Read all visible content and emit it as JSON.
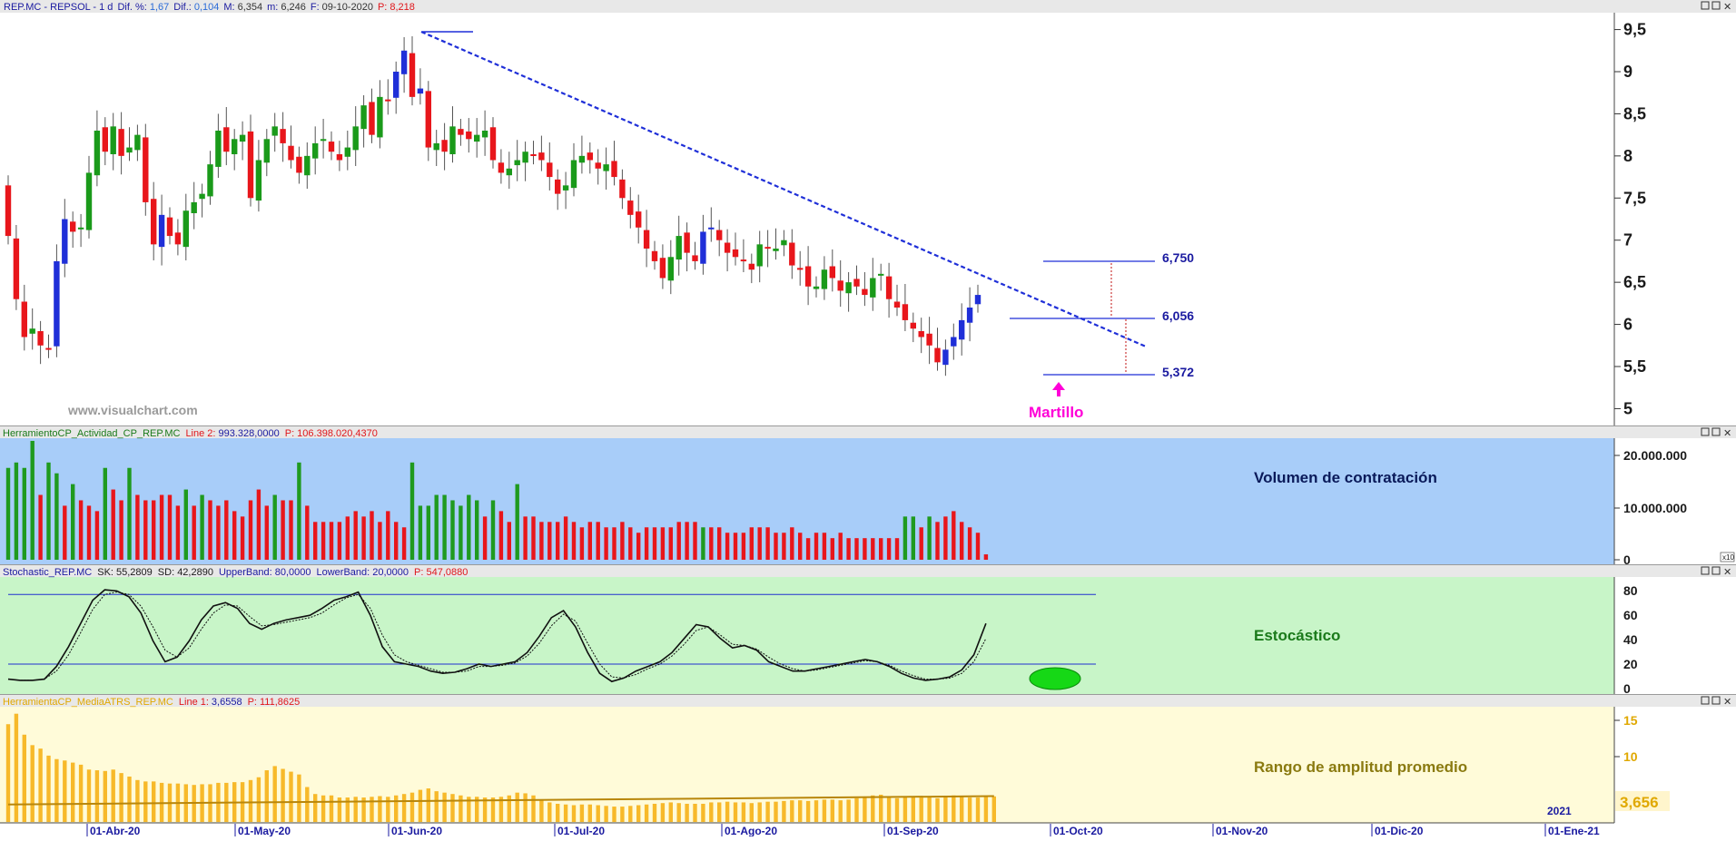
{
  "header": {
    "symbol": "REP.MC - REPSOL - 1 d",
    "dif_pct_label": "Dif. %:",
    "dif_pct_value": "1,67",
    "dif_label": "Dif.:",
    "dif_value": "0,104",
    "max_label": "M:",
    "max_value": "6,354",
    "min_label": "m:",
    "min_value": "6,246",
    "date_label": "F:",
    "date_value": "09-10-2020",
    "price_label": "P:",
    "price_value": "8,218"
  },
  "watermark": "www.visualchart.com",
  "annotations": {
    "level_high": "6,750",
    "level_mid": "6,056",
    "level_low": "5,372",
    "hammer_label": "Martillo"
  },
  "panels": {
    "volume": {
      "header_name": "HerramientoCP_Actividad_CP_REP.MC",
      "header_line_label": "Line 2:",
      "header_line_value": "993.328,0000",
      "header_p_label": "P:",
      "header_p_value": "106.398.020,4370",
      "title": "Volumen de contratación",
      "axis_ticks": [
        "20.000.000",
        "10.000.000",
        "0"
      ],
      "axis_scale_marker": "x10"
    },
    "stochastic": {
      "header_name": "Stochastic_REP.MC",
      "header_sk": "SK: 55,2809",
      "header_sd": "SD: 42,2890",
      "header_upper": "UpperBand: 80,0000",
      "header_lower": "LowerBand: 20,0000",
      "header_p": "P: 547,0880",
      "title": "Estocástico",
      "axis_ticks": [
        "80",
        "60",
        "40",
        "20",
        "0"
      ]
    },
    "atr": {
      "header_name": "HerramientaCP_MediaATRS_REP.MC",
      "header_line_label": "Line 1:",
      "header_line_value": "3,6558",
      "header_p_label": "P:",
      "header_p_value": "111,8625",
      "title": "Rango de amplitud promedio",
      "axis_ticks": [
        "15",
        "10"
      ],
      "last_value": "3,656"
    }
  },
  "x_axis": {
    "labels": [
      "01-Abr-20",
      "01-May-20",
      "01-Jun-20",
      "01-Jul-20",
      "01-Ago-20",
      "01-Sep-20",
      "01-Oct-20",
      "01-Nov-20",
      "01-Dic-20",
      "01-Ene-21"
    ],
    "year_marker": "2021"
  },
  "chart_data": [
    {
      "type": "candlestick",
      "symbol": "REP.MC",
      "ylim": [
        4.8,
        9.7
      ],
      "y_ticks": [
        "9,5",
        "9",
        "8,5",
        "8",
        "7,5",
        "7",
        "6,5",
        "6",
        "5,5",
        "5"
      ],
      "up_color": "#1a9a1a",
      "down_color": "#e8161b",
      "special_color": "#1f2fd8",
      "closes": [
        7.05,
        6.3,
        5.85,
        5.95,
        5.75,
        5.7,
        6.75,
        7.25,
        7.1,
        7.15,
        7.8,
        8.3,
        8.05,
        8.35,
        8.0,
        8.1,
        8.25,
        7.45,
        6.95,
        7.3,
        7.05,
        6.95,
        7.35,
        7.45,
        7.55,
        7.9,
        8.3,
        8.05,
        8.2,
        8.25,
        7.5,
        7.95,
        8.2,
        8.35,
        8.15,
        7.95,
        7.8,
        8.0,
        8.15,
        8.2,
        8.05,
        7.95,
        8.1,
        8.35,
        8.6,
        8.25,
        8.7,
        8.65,
        9.0,
        9.25,
        8.7,
        8.8,
        8.1,
        8.15,
        8.05,
        8.35,
        8.25,
        8.2,
        8.25,
        8.3,
        7.95,
        7.8,
        7.85,
        7.95,
        8.05,
        8.0,
        7.95,
        7.75,
        7.55,
        7.65,
        7.95,
        8.0,
        7.95,
        7.85,
        7.9,
        7.75,
        7.5,
        7.3,
        7.15,
        6.9,
        6.75,
        6.55,
        6.8,
        7.05,
        6.85,
        6.75,
        7.1,
        7.15,
        7.0,
        6.85,
        6.8,
        6.75,
        6.65,
        6.95,
        6.9,
        6.9,
        7.0,
        6.7,
        6.65,
        6.45,
        6.45,
        6.65,
        6.55,
        6.4,
        6.5,
        6.45,
        6.35,
        6.55,
        6.6,
        6.3,
        6.2,
        6.05,
        5.95,
        5.85,
        5.75,
        5.55,
        5.7,
        5.85,
        6.05,
        6.2,
        6.35
      ]
    },
    {
      "type": "bar",
      "name": "Volumen de contratación",
      "ylim": [
        0,
        23000000
      ],
      "values": [
        17000000,
        18000000,
        17000000,
        22000000,
        12000000,
        18000000,
        16000000,
        10000000,
        14000000,
        11000000,
        10000000,
        9000000,
        17000000,
        13000000,
        11000000,
        17000000,
        12000000,
        11000000,
        11000000,
        12000000,
        12000000,
        10000000,
        13000000,
        10000000,
        12000000,
        11000000,
        10000000,
        11000000,
        9000000,
        8000000,
        11000000,
        13000000,
        10000000,
        12000000,
        11000000,
        11000000,
        18000000,
        10000000,
        7000000,
        7000000,
        7000000,
        7000000,
        8000000,
        9000000,
        8000000,
        9000000,
        7000000,
        9000000,
        7000000,
        6000000,
        18000000,
        10000000,
        10000000,
        12000000,
        12000000,
        11000000,
        10000000,
        12000000,
        11000000,
        8000000,
        11000000,
        9000000,
        7000000,
        14000000,
        8000000,
        8000000,
        7000000,
        7000000,
        7000000,
        8000000,
        7000000,
        6000000,
        7000000,
        7000000,
        6000000,
        6000000,
        7000000,
        6000000,
        5000000,
        6000000,
        6000000,
        6000000,
        6000000,
        7000000,
        7000000,
        7000000,
        6000000,
        6000000,
        6000000,
        5000000,
        5000000,
        5000000,
        6000000,
        6000000,
        6000000,
        5000000,
        5000000,
        6000000,
        5000000,
        4000000,
        5000000,
        5000000,
        4000000,
        5000000,
        4000000,
        4000000,
        4000000,
        4000000,
        4000000,
        4000000,
        4000000,
        8000000,
        8000000,
        6000000,
        8000000,
        7000000,
        8000000,
        9000000,
        7000000,
        6000000,
        5000000,
        1000000
      ],
      "colors": [
        "g",
        "g",
        "g",
        "g",
        "r",
        "g",
        "g",
        "r",
        "g",
        "r",
        "r",
        "r",
        "g",
        "r",
        "r",
        "g",
        "r",
        "r",
        "r",
        "r",
        "r",
        "r",
        "g",
        "r",
        "g",
        "r",
        "r",
        "r",
        "r",
        "r",
        "r",
        "r",
        "r",
        "g",
        "r",
        "r",
        "g",
        "r",
        "r",
        "r",
        "r",
        "r",
        "r",
        "r",
        "r",
        "r",
        "r",
        "r",
        "r",
        "r",
        "g",
        "g",
        "g",
        "g",
        "g",
        "g",
        "g",
        "g",
        "g",
        "r",
        "g",
        "r",
        "r",
        "g",
        "r",
        "r",
        "r",
        "r",
        "r",
        "r",
        "r",
        "r",
        "r",
        "r",
        "r",
        "r",
        "r",
        "r",
        "r",
        "r",
        "r",
        "r",
        "r",
        "r",
        "r",
        "r",
        "g",
        "r",
        "r",
        "r",
        "r",
        "r",
        "r",
        "r",
        "r",
        "r",
        "r",
        "r",
        "r",
        "r",
        "r",
        "r",
        "r",
        "r",
        "r",
        "r",
        "r",
        "r",
        "r",
        "r",
        "r",
        "g",
        "g",
        "r",
        "g",
        "r",
        "r",
        "r",
        "r",
        "r",
        "r",
        "r"
      ]
    },
    {
      "type": "line",
      "name": "Estocástico",
      "ylim": [
        -5,
        95
      ],
      "bands": [
        80,
        20
      ],
      "series": [
        {
          "name": "SK",
          "values": [
            7,
            6,
            6,
            7,
            18,
            35,
            55,
            75,
            84,
            83,
            78,
            64,
            40,
            22,
            26,
            40,
            58,
            70,
            73,
            68,
            55,
            50,
            55,
            58,
            60,
            62,
            68,
            75,
            78,
            82,
            62,
            35,
            22,
            20,
            18,
            14,
            12,
            13,
            16,
            20,
            18,
            20,
            22,
            30,
            44,
            60,
            66,
            52,
            30,
            12,
            5,
            8,
            14,
            18,
            22,
            30,
            42,
            54,
            52,
            42,
            34,
            36,
            32,
            22,
            18,
            14,
            14,
            16,
            18,
            20,
            22,
            24,
            22,
            18,
            12,
            8,
            6,
            7,
            9,
            15,
            28,
            55
          ]
        },
        {
          "name": "SD",
          "values": [
            7,
            6,
            6,
            7,
            14,
            28,
            47,
            67,
            80,
            82,
            80,
            70,
            52,
            32,
            26,
            34,
            50,
            64,
            71,
            70,
            61,
            53,
            54,
            56,
            58,
            60,
            64,
            71,
            77,
            80,
            68,
            45,
            28,
            22,
            19,
            16,
            13,
            13,
            14,
            18,
            18,
            19,
            21,
            27,
            38,
            53,
            63,
            57,
            38,
            20,
            9,
            8,
            11,
            16,
            20,
            27,
            37,
            49,
            52,
            45,
            37,
            36,
            33,
            26,
            20,
            16,
            14,
            15,
            17,
            19,
            21,
            23,
            22,
            19,
            14,
            10,
            7,
            7,
            8,
            12,
            22,
            42
          ]
        }
      ]
    },
    {
      "type": "bar",
      "name": "Rango de amplitud promedio",
      "ylim": [
        0,
        16.5
      ],
      "values": [
        14,
        15.5,
        12.5,
        11,
        10.5,
        9.5,
        9,
        8.8,
        8.5,
        8.2,
        7.5,
        7.4,
        7.3,
        7.5,
        7,
        6.5,
        6,
        5.8,
        5.8,
        5.6,
        5.5,
        5.5,
        5.4,
        5.3,
        5.4,
        5.4,
        5.6,
        5.6,
        5.7,
        5.7,
        6,
        6.4,
        7.4,
        8,
        7.6,
        7.2,
        6.8,
        5,
        4,
        3.8,
        3.8,
        3.5,
        3.5,
        3.6,
        3.5,
        3.6,
        3.7,
        3.6,
        3.8,
        4,
        4.2,
        4.6,
        4.8,
        4.4,
        4.2,
        4,
        3.8,
        3.6,
        3.6,
        3.5,
        3.5,
        3.6,
        3.8,
        4.2,
        4.1,
        3.8,
        3.2,
        2.8,
        2.6,
        2.5,
        2.4,
        2.5,
        2.5,
        2.4,
        2.3,
        2.2,
        2.2,
        2.3,
        2.4,
        2.5,
        2.6,
        2.7,
        2.8,
        2.7,
        2.6,
        2.6,
        2.6,
        2.8,
        2.8,
        2.9,
        2.8,
        2.8,
        2.7,
        2.8,
        2.9,
        2.9,
        3,
        3.1,
        3.1,
        3,
        3.1,
        3.2,
        3.2,
        3.1,
        3.2,
        3.4,
        3.6,
        3.8,
        3.9,
        3.5,
        3.4,
        3.6,
        3.7,
        3.5,
        3.5,
        3.4,
        3.6,
        3.8,
        3.6,
        3.5,
        3.5,
        3.6,
        3.66
      ],
      "average_line": {
        "name": "Line 1",
        "values": [
          2.5,
          3.7
        ]
      }
    }
  ]
}
